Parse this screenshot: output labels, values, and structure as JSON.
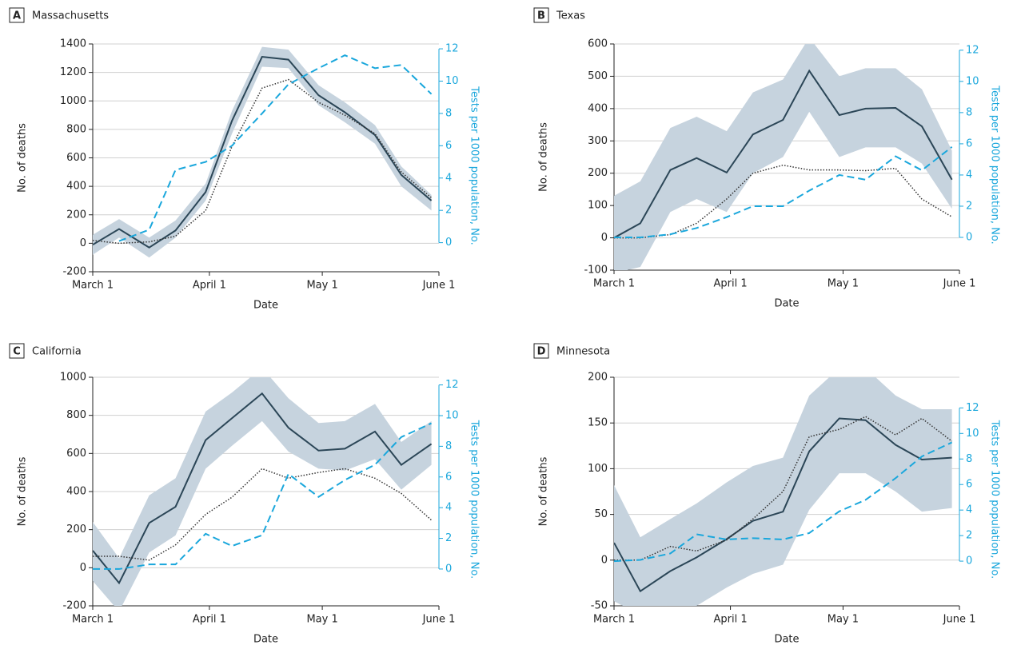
{
  "chart_data": [
    {
      "type": "line",
      "panel": "A",
      "title": "Massachusetts",
      "x_label": "Date",
      "y_label": "No. of deaths",
      "y2_label": "Tests per 1000 population, No.",
      "x": [
        0,
        7,
        15,
        22,
        30,
        37,
        45,
        52,
        60,
        67,
        75,
        82,
        90
      ],
      "xlim": [
        0,
        92
      ],
      "xticks": [
        {
          "value": 0,
          "label": "March 1"
        },
        {
          "value": 31,
          "label": "April 1"
        },
        {
          "value": 61,
          "label": "May 1"
        },
        {
          "value": 92,
          "label": "June 1"
        }
      ],
      "ylim": [
        -200,
        1400
      ],
      "yticks": [
        -200,
        0,
        200,
        400,
        600,
        800,
        1000,
        1200,
        1400
      ],
      "y2lim": [
        -1.8,
        12.3
      ],
      "y2ticks": [
        0,
        2,
        4,
        6,
        8,
        10,
        12
      ],
      "grid": true,
      "band": {
        "color": "#c6d3de",
        "lower": [
          -80,
          40,
          -100,
          40,
          300,
          770,
          1240,
          1230,
          970,
          850,
          700,
          400,
          230
        ],
        "upper": [
          60,
          170,
          40,
          160,
          420,
          930,
          1380,
          1360,
          1110,
          990,
          830,
          540,
          340
        ]
      },
      "series": [
        {
          "color": "#2b4657",
          "style": "solid",
          "values": [
            -10,
            100,
            -30,
            90,
            360,
            860,
            1310,
            1290,
            1040,
            920,
            760,
            480,
            300
          ]
        },
        {
          "color": "#333333",
          "style": "dotted",
          "values": [
            20,
            0,
            10,
            50,
            230,
            680,
            1090,
            1150,
            990,
            900,
            770,
            500,
            320
          ]
        },
        {
          "color": "#1aa7dc",
          "style": "dashed",
          "axis": "y2",
          "values": [
            null,
            0.1,
            0.8,
            4.5,
            5.0,
            6.0,
            8.0,
            9.8,
            10.8,
            11.6,
            10.8,
            11.0,
            9.2
          ]
        }
      ]
    },
    {
      "type": "line",
      "panel": "B",
      "title": "Texas",
      "x_label": "Date",
      "y_label": "No. of deaths",
      "y2_label": "Tests per 1000 population, No.",
      "x": [
        0,
        7,
        15,
        22,
        30,
        37,
        45,
        52,
        60,
        67,
        75,
        82,
        90
      ],
      "xlim": [
        0,
        92
      ],
      "xticks": [
        {
          "value": 0,
          "label": "March 1"
        },
        {
          "value": 31,
          "label": "April 1"
        },
        {
          "value": 61,
          "label": "May 1"
        },
        {
          "value": 92,
          "label": "June 1"
        }
      ],
      "ylim": [
        -100,
        600
      ],
      "yticks": [
        -100,
        0,
        100,
        200,
        300,
        400,
        500,
        600
      ],
      "y2lim": [
        -2.1,
        12.4
      ],
      "y2ticks": [
        0,
        2,
        4,
        6,
        8,
        10,
        12
      ],
      "grid": true,
      "band": {
        "color": "#c6d3de",
        "lower": [
          -110,
          -90,
          80,
          120,
          80,
          200,
          250,
          390,
          250,
          280,
          280,
          230,
          90
        ],
        "upper": [
          130,
          175,
          340,
          375,
          330,
          450,
          490,
          620,
          500,
          525,
          525,
          460,
          270
        ]
      },
      "series": [
        {
          "color": "#2b4657",
          "style": "solid",
          "values": [
            0,
            45,
            210,
            247,
            202,
            320,
            365,
            517,
            380,
            400,
            402,
            345,
            180
          ]
        },
        {
          "color": "#333333",
          "style": "dotted",
          "values": [
            0,
            0,
            10,
            45,
            120,
            200,
            225,
            210,
            210,
            208,
            215,
            120,
            65
          ]
        },
        {
          "color": "#1aa7dc",
          "style": "dashed",
          "axis": "y2",
          "values": [
            0,
            0,
            0.2,
            0.6,
            1.3,
            2.0,
            2.0,
            3.0,
            4.0,
            3.7,
            5.2,
            4.3,
            5.8
          ]
        }
      ]
    },
    {
      "type": "line",
      "panel": "C",
      "title": "California",
      "x_label": "Date",
      "y_label": "No. of deaths",
      "y2_label": "Tests per 1000 population, No.",
      "x": [
        0,
        7,
        15,
        22,
        30,
        37,
        45,
        52,
        60,
        67,
        75,
        82,
        90
      ],
      "xlim": [
        0,
        92
      ],
      "xticks": [
        {
          "value": 0,
          "label": "March 1"
        },
        {
          "value": 31,
          "label": "April 1"
        },
        {
          "value": 61,
          "label": "May 1"
        },
        {
          "value": 92,
          "label": "June 1"
        }
      ],
      "ylim": [
        -200,
        1000
      ],
      "yticks": [
        -200,
        0,
        200,
        400,
        600,
        800,
        1000
      ],
      "y2lim": [
        -2.4,
        12.5
      ],
      "y2ticks": [
        0,
        2,
        4,
        6,
        8,
        10,
        12
      ],
      "grid": true,
      "band": {
        "color": "#c6d3de",
        "lower": [
          -70,
          -230,
          80,
          170,
          520,
          640,
          770,
          610,
          520,
          510,
          570,
          410,
          540
        ],
        "upper": [
          240,
          50,
          380,
          470,
          820,
          920,
          1050,
          890,
          760,
          770,
          860,
          660,
          770
        ]
      },
      "series": [
        {
          "color": "#2b4657",
          "style": "solid",
          "values": [
            90,
            -80,
            235,
            320,
            670,
            785,
            915,
            735,
            615,
            625,
            715,
            540,
            650
          ]
        },
        {
          "color": "#333333",
          "style": "dotted",
          "values": [
            60,
            60,
            40,
            120,
            280,
            370,
            520,
            470,
            500,
            520,
            470,
            390,
            250
          ]
        },
        {
          "color": "#1aa7dc",
          "style": "dashed",
          "axis": "y2",
          "values": [
            0,
            0,
            0.3,
            0.3,
            2.3,
            1.5,
            2.2,
            6.2,
            4.7,
            5.8,
            6.8,
            8.6,
            9.5
          ]
        }
      ]
    },
    {
      "type": "line",
      "panel": "D",
      "title": "Minnesota",
      "x_label": "Date",
      "y_label": "No. of deaths",
      "y2_label": "Tests per 1000 population, No.",
      "x": [
        0,
        7,
        15,
        22,
        30,
        37,
        45,
        52,
        60,
        67,
        75,
        82,
        90
      ],
      "xlim": [
        0,
        92
      ],
      "xticks": [
        {
          "value": 0,
          "label": "March 1"
        },
        {
          "value": 31,
          "label": "April 1"
        },
        {
          "value": 61,
          "label": "May 1"
        },
        {
          "value": 92,
          "label": "June 1"
        }
      ],
      "ylim": [
        -50,
        200
      ],
      "yticks": [
        -50,
        0,
        50,
        100,
        150,
        200
      ],
      "y2lim": [
        -3.5,
        14.4
      ],
      "y2ticks": [
        0,
        2,
        4,
        6,
        8,
        10,
        12
      ],
      "grid": true,
      "band": {
        "color": "#c6d3de",
        "lower": [
          -45,
          -60,
          -60,
          -50,
          -30,
          -15,
          -5,
          55,
          95,
          95,
          75,
          53,
          57
        ],
        "upper": [
          82,
          25,
          45,
          62,
          85,
          103,
          112,
          180,
          210,
          210,
          180,
          165,
          165
        ]
      },
      "series": [
        {
          "color": "#2b4657",
          "style": "solid",
          "values": [
            19,
            -34,
            -12,
            3,
            23,
            43,
            53,
            119,
            155,
            153,
            126,
            110,
            112
          ]
        },
        {
          "color": "#333333",
          "style": "dotted",
          "values": [
            0,
            0,
            15,
            10,
            22,
            45,
            75,
            135,
            143,
            157,
            137,
            155,
            130
          ]
        },
        {
          "color": "#1aa7dc",
          "style": "dashed",
          "axis": "y2",
          "values": [
            0,
            0.1,
            0.6,
            2.1,
            1.7,
            1.8,
            1.7,
            2.2,
            3.9,
            4.8,
            6.5,
            8.2,
            9.3
          ]
        }
      ]
    }
  ]
}
